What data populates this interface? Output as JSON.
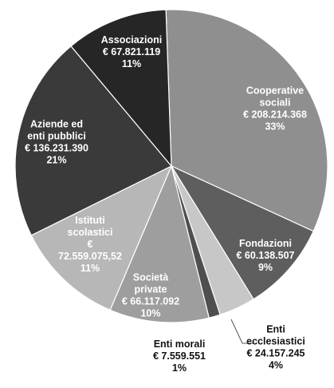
{
  "chart_data": {
    "type": "pie",
    "title": "",
    "series": [
      {
        "name": "Slices",
        "slices": [
          {
            "label": "Cooperative sociali",
            "value_text": "€ 208.214.368",
            "pct_text": "33%",
            "value": 208214368,
            "color": "#8f8f8f",
            "text_color": "#ffffff",
            "lines": [
              "Cooperative",
              "sociali",
              "€ 208.214.368",
              "33%"
            ]
          },
          {
            "label": "Fondazioni",
            "value_text": "€ 60.138.507",
            "pct_text": "9%",
            "value": 60138507,
            "color": "#5e5e5e",
            "text_color": "#ffffff",
            "lines": [
              "Fondazioni",
              "€ 60.138.507",
              "9%"
            ]
          },
          {
            "label": "Enti ecclesiastici",
            "value_text": "€ 24.157.245",
            "pct_text": "4%",
            "value": 24157245,
            "color": "#c7c7c7",
            "text_color": "#111111",
            "lines": [
              "Enti",
              "ecclesiastici",
              "€ 24.157.245",
              "4%"
            ]
          },
          {
            "label": "Enti morali",
            "value_text": "€ 7.559.551",
            "pct_text": "1%",
            "value": 7559551,
            "color": "#4f4f4f",
            "text_color": "#111111",
            "lines": [
              "Enti morali",
              "€ 7.559.551",
              "1%"
            ]
          },
          {
            "label": "Società private",
            "value_text": "€ 66.117.092",
            "pct_text": "10%",
            "value": 66117092,
            "color": "#9e9e9e",
            "text_color": "#ffffff",
            "lines": [
              "Società",
              "private",
              "€ 66.117.092",
              "10%"
            ]
          },
          {
            "label": "Istituti scolastici",
            "value_text": "€ 72.559.075,52",
            "pct_text": "11%",
            "value": 72559075.52,
            "color": "#b7b7b7",
            "text_color": "#ffffff",
            "lines": [
              "Istituti",
              "scolastici",
              "€",
              "72.559.075,52",
              "11%"
            ]
          },
          {
            "label": "Aziende ed enti pubblici",
            "value_text": "€ 136.231.390",
            "pct_text": "21%",
            "value": 136231390,
            "color": "#3a3a3a",
            "text_color": "#ffffff",
            "lines": [
              "Aziende ed",
              "enti pubblici",
              "€ 136.231.390",
              "21%"
            ]
          },
          {
            "label": "Associazioni",
            "value_text": "€ 67.821.119",
            "pct_text": "11%",
            "value": 67821119,
            "color": "#262626",
            "text_color": "#ffffff",
            "lines": [
              "Associazioni",
              "€ 67.821.119",
              "11%"
            ]
          }
        ]
      }
    ]
  }
}
